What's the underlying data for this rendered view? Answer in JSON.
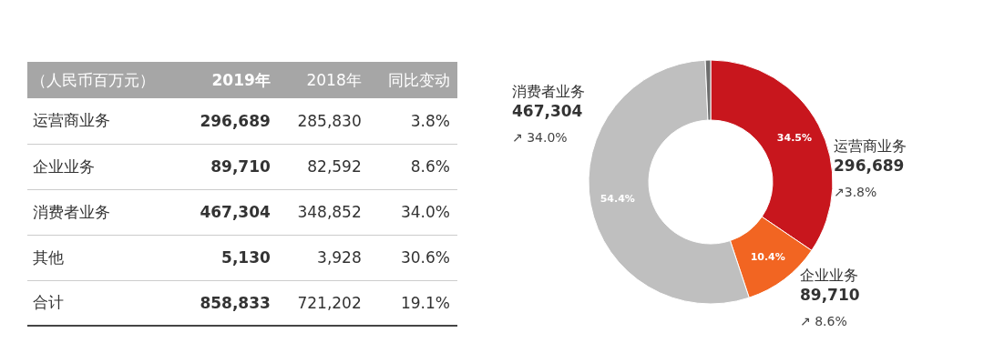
{
  "chart_data": [
    {
      "type": "other",
      "title": "（人民币百万元）",
      "annotations": [
        "2019年",
        "2018年",
        "同比变动",
        "运营商业务",
        "296,689",
        "285,830",
        "3.8%",
        "企业业务",
        "89,710",
        "82,592",
        "8.6%",
        "消费者业务",
        "467,304",
        "348,852",
        "34.0%",
        "其他",
        "5,130",
        "3,928",
        "30.6%",
        "合计",
        "858,833",
        "721,202",
        "19.1%"
      ]
    },
    {
      "type": "donut",
      "categories": [
        "运营商业务",
        "企业业务",
        "消费者业务",
        null
      ],
      "values": [
        34.5,
        10.4,
        54.4,
        0.7
      ],
      "colors": [
        "#c8161d",
        "#f26522",
        "#bfbfbf",
        "#6d6d6d"
      ],
      "value_labels": [
        "34.5%",
        "10.4%",
        "54.4%",
        null
      ],
      "annotations": [
        "296,689",
        "↗3.8%",
        "89,710",
        "↗ 8.6%",
        "467,304",
        "↗ 34.0%"
      ]
    }
  ]
}
